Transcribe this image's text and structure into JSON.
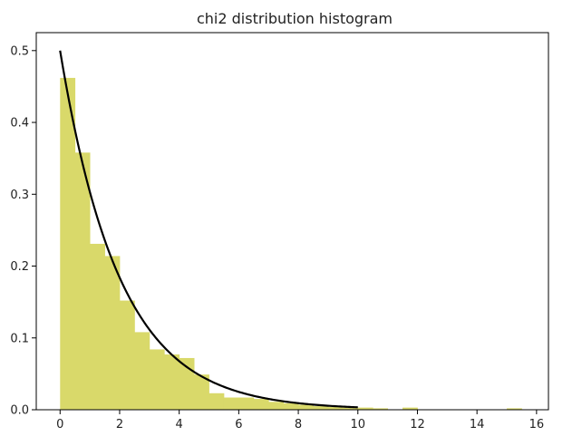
{
  "chart_data": {
    "type": "bar",
    "title": "chi2 distribution histogram",
    "xlabel": "",
    "ylabel": "",
    "xlim": [
      -0.8,
      16.4
    ],
    "ylim": [
      0,
      0.525
    ],
    "xticks": [
      0,
      2,
      4,
      6,
      8,
      10,
      12,
      14,
      16
    ],
    "yticks": [
      0.0,
      0.1,
      0.2,
      0.3,
      0.4,
      0.5
    ],
    "ytick_labels": [
      "0.0",
      "0.1",
      "0.2",
      "0.3",
      "0.4",
      "0.5"
    ],
    "grid": false,
    "bar_color": "#d9d96a",
    "line_color": "#000000",
    "histogram": {
      "bin_width": 0.5,
      "bins": [
        {
          "x0": 0.0,
          "x1": 0.5,
          "density": 0.462
        },
        {
          "x0": 0.5,
          "x1": 1.0,
          "density": 0.358
        },
        {
          "x0": 1.0,
          "x1": 1.5,
          "density": 0.231
        },
        {
          "x0": 1.5,
          "x1": 2.0,
          "density": 0.214
        },
        {
          "x0": 2.0,
          "x1": 2.5,
          "density": 0.152
        },
        {
          "x0": 2.5,
          "x1": 3.0,
          "density": 0.108
        },
        {
          "x0": 3.0,
          "x1": 3.5,
          "density": 0.084
        },
        {
          "x0": 3.5,
          "x1": 4.0,
          "density": 0.077
        },
        {
          "x0": 4.0,
          "x1": 4.5,
          "density": 0.072
        },
        {
          "x0": 4.5,
          "x1": 5.0,
          "density": 0.049
        },
        {
          "x0": 5.0,
          "x1": 5.5,
          "density": 0.023
        },
        {
          "x0": 5.5,
          "x1": 6.0,
          "density": 0.017
        },
        {
          "x0": 6.0,
          "x1": 6.5,
          "density": 0.017
        },
        {
          "x0": 6.5,
          "x1": 7.0,
          "density": 0.015
        },
        {
          "x0": 7.0,
          "x1": 7.5,
          "density": 0.011
        },
        {
          "x0": 7.5,
          "x1": 8.0,
          "density": 0.009
        },
        {
          "x0": 8.0,
          "x1": 8.5,
          "density": 0.007
        },
        {
          "x0": 8.5,
          "x1": 9.0,
          "density": 0.005
        },
        {
          "x0": 9.0,
          "x1": 9.5,
          "density": 0.004
        },
        {
          "x0": 9.5,
          "x1": 10.0,
          "density": 0.003
        },
        {
          "x0": 10.0,
          "x1": 10.5,
          "density": 0.003
        },
        {
          "x0": 10.5,
          "x1": 11.0,
          "density": 0.002
        },
        {
          "x0": 11.0,
          "x1": 11.5,
          "density": 0.0
        },
        {
          "x0": 11.5,
          "x1": 12.0,
          "density": 0.003
        },
        {
          "x0": 12.0,
          "x1": 12.5,
          "density": 0.0
        },
        {
          "x0": 15.0,
          "x1": 15.5,
          "density": 0.002
        }
      ]
    },
    "curve": {
      "x_range": [
        0,
        10
      ],
      "formula": "0.5 * exp(-x / 2)",
      "description": "chi-square pdf, k=2"
    }
  }
}
